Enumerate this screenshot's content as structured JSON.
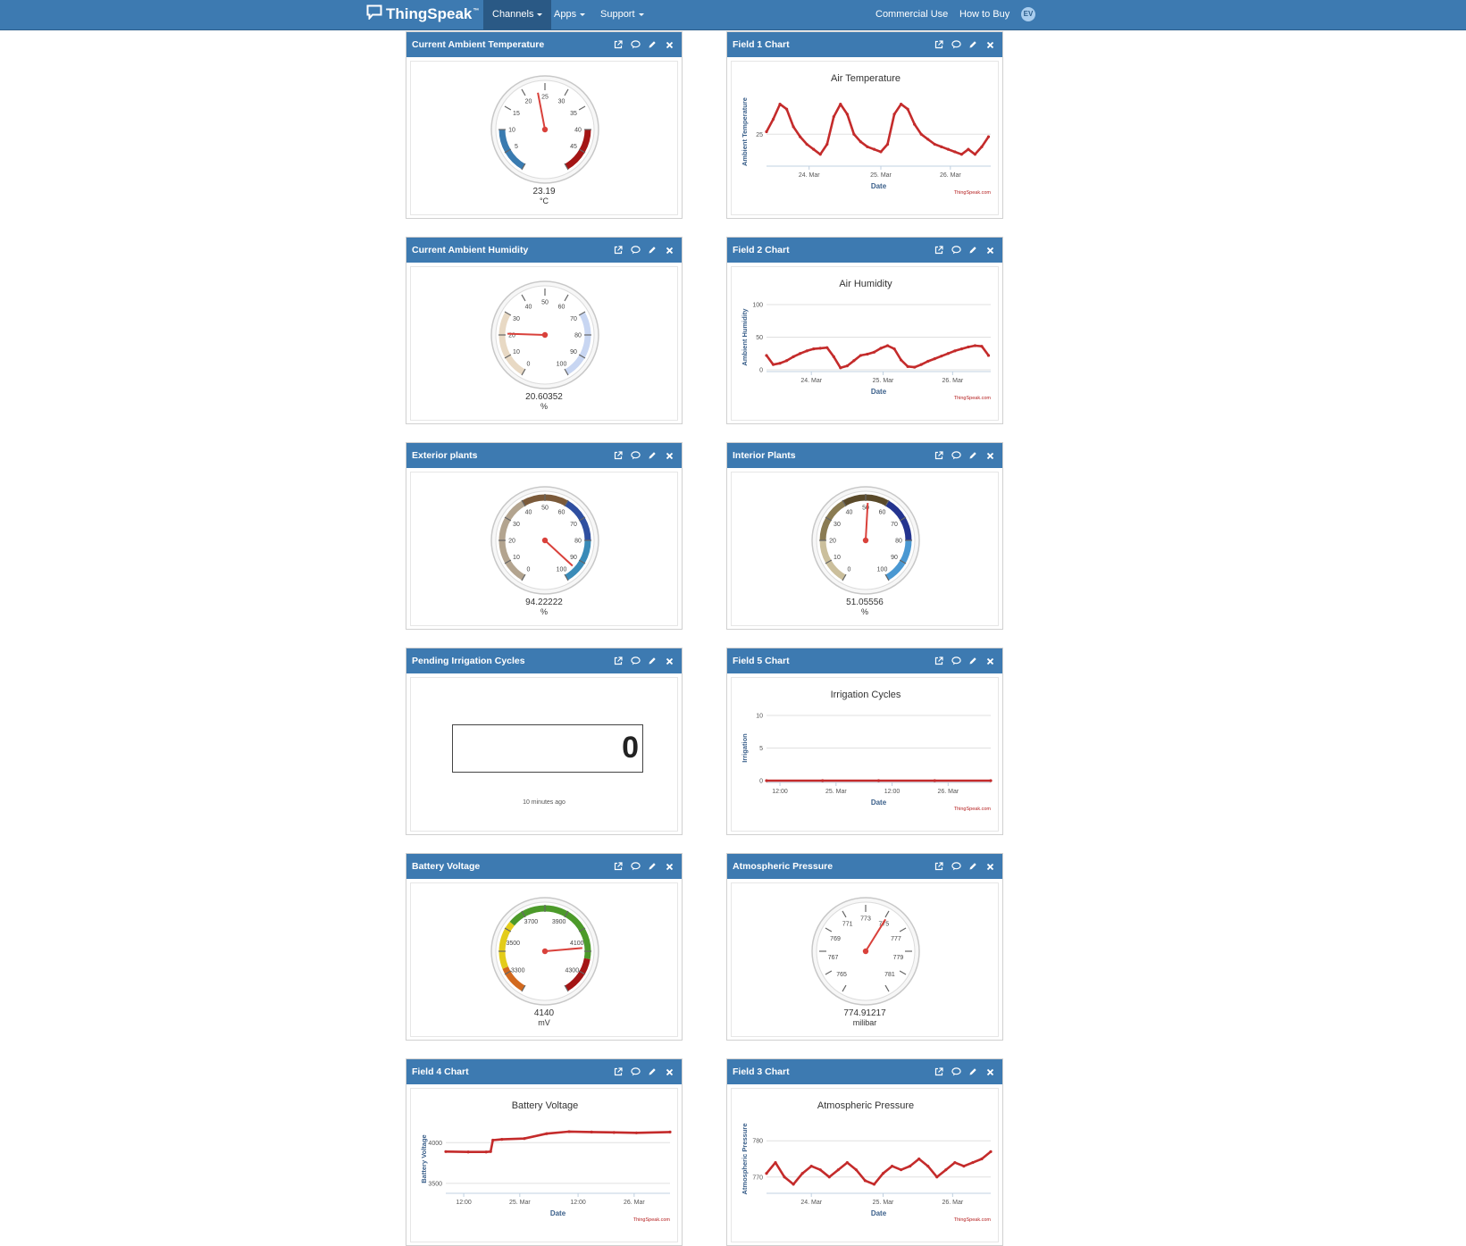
{
  "nav": {
    "brand": "ThingSpeak",
    "trademark": "™",
    "items": [
      {
        "label": "Channels"
      },
      {
        "label": "Apps"
      },
      {
        "label": "Support"
      }
    ],
    "right_items": [
      {
        "label": "Commercial Use"
      },
      {
        "label": "How to Buy"
      }
    ],
    "avatar": "EV"
  },
  "widgets": [
    {
      "id": "w0",
      "title": "Current Ambient Temperature",
      "kind": "gauge",
      "value_text": "23.19",
      "unit": "°C",
      "gauge": {
        "min": 0,
        "max": 50,
        "value": 23.19,
        "labels": [
          "5",
          "10",
          "15",
          "20",
          "25",
          "30",
          "35",
          "40",
          "45"
        ],
        "bands": [
          {
            "from": 0,
            "to": 10,
            "color": "#3a7bb0"
          },
          {
            "from": 40,
            "to": 50,
            "color": "#a41515"
          }
        ]
      }
    },
    {
      "id": "w1",
      "title": "Field 1 Chart",
      "kind": "chart",
      "chart_index": 0
    },
    {
      "id": "w2",
      "title": "Current Ambient Humidity",
      "kind": "gauge",
      "value_text": "20.60352",
      "unit": "%",
      "gauge": {
        "min": 0,
        "max": 100,
        "value": 20.60352,
        "labels": [
          "0",
          "10",
          "20",
          "30",
          "40",
          "50",
          "60",
          "70",
          "80",
          "90",
          "100"
        ],
        "bands": [
          {
            "from": 0,
            "to": 30,
            "color": "#e8d9c4"
          },
          {
            "from": 70,
            "to": 100,
            "color": "#c8d6f2"
          }
        ]
      }
    },
    {
      "id": "w3",
      "title": "Field 2 Chart",
      "kind": "chart",
      "chart_index": 1
    },
    {
      "id": "w4",
      "title": "Exterior plants",
      "kind": "gauge",
      "value_text": "94.22222",
      "unit": "%",
      "gauge": {
        "min": 0,
        "max": 100,
        "value": 94.22222,
        "labels": [
          "0",
          "10",
          "20",
          "30",
          "40",
          "50",
          "60",
          "70",
          "80",
          "90",
          "100"
        ],
        "bands": [
          {
            "from": 0,
            "to": 40,
            "color": "#b3a48f"
          },
          {
            "from": 40,
            "to": 60,
            "color": "#7b5a3a"
          },
          {
            "from": 60,
            "to": 80,
            "color": "#2f4fa0"
          },
          {
            "from": 80,
            "to": 100,
            "color": "#3a8bb8"
          }
        ]
      }
    },
    {
      "id": "w5",
      "title": "Interior Plants",
      "kind": "gauge",
      "value_text": "51.05556",
      "unit": "%",
      "gauge": {
        "min": 0,
        "max": 100,
        "value": 51.05556,
        "labels": [
          "0",
          "10",
          "20",
          "30",
          "40",
          "50",
          "60",
          "70",
          "80",
          "90",
          "100"
        ],
        "bands": [
          {
            "from": 0,
            "to": 20,
            "color": "#cbbf9c"
          },
          {
            "from": 20,
            "to": 40,
            "color": "#8a7b52"
          },
          {
            "from": 40,
            "to": 60,
            "color": "#5a4a2a"
          },
          {
            "from": 60,
            "to": 80,
            "color": "#24348f"
          },
          {
            "from": 80,
            "to": 100,
            "color": "#4a98d2"
          }
        ]
      }
    },
    {
      "id": "w6",
      "title": "Pending Irrigation Cycles",
      "kind": "lamp",
      "value_text": "0",
      "time_text": "10 minutes ago"
    },
    {
      "id": "w7",
      "title": "Field 5 Chart",
      "kind": "chart",
      "chart_index": 2
    },
    {
      "id": "w8",
      "title": "Battery Voltage",
      "kind": "gauge",
      "value_text": "4140",
      "unit": "mV",
      "gauge": {
        "min": 3200,
        "max": 4400,
        "value": 4140,
        "labels": [
          "3300",
          "3500",
          "3700",
          "3900",
          "4100",
          "4300"
        ],
        "label_values": [
          3300,
          3500,
          3700,
          3900,
          4100,
          4300
        ],
        "bands": [
          {
            "from": 3200,
            "to": 3350,
            "color": "#d2691e"
          },
          {
            "from": 3350,
            "to": 3600,
            "color": "#e3cc1a"
          },
          {
            "from": 3600,
            "to": 4200,
            "color": "#4c9a2a"
          },
          {
            "from": 4200,
            "to": 4400,
            "color": "#a41515"
          }
        ]
      }
    },
    {
      "id": "w9",
      "title": "Atmospheric Pressure",
      "kind": "gauge",
      "value_text": "774.91217",
      "unit": "milibar",
      "gauge": {
        "min": 764,
        "max": 782,
        "value": 774.91217,
        "labels": [
          "765",
          "767",
          "769",
          "771",
          "773",
          "775",
          "777",
          "779",
          "781"
        ],
        "label_values": [
          765,
          767,
          769,
          771,
          773,
          775,
          777,
          779,
          781
        ],
        "bands": []
      }
    },
    {
      "id": "w10",
      "title": "Field 4 Chart",
      "kind": "chart",
      "chart_index": 3
    },
    {
      "id": "w11",
      "title": "Field 3 Chart",
      "kind": "chart",
      "chart_index": 4
    }
  ],
  "chart_data": [
    {
      "type": "line",
      "title": "Air Temperature",
      "ylabel": "Ambient Temperature",
      "xlabel": "Date",
      "xticks": [
        "24. Mar",
        "25. Mar",
        "26. Mar"
      ],
      "yticks": [
        "25"
      ],
      "credit": "ThingSpeak.com",
      "ylim": [
        19,
        32
      ],
      "xlim": [
        0,
        100
      ],
      "ytick_values": [
        25
      ],
      "xtick_positions": [
        19,
        51,
        82
      ],
      "x": [
        0,
        3,
        6,
        9,
        12,
        15,
        18,
        21,
        24,
        27,
        30,
        33,
        36,
        39,
        42,
        45,
        48,
        51,
        54,
        57,
        60,
        63,
        66,
        69,
        72,
        75,
        78,
        81,
        84,
        87,
        90,
        93,
        96,
        99
      ],
      "y": [
        25.5,
        28,
        31,
        30,
        26.5,
        24.5,
        23,
        22,
        21,
        23,
        28.5,
        31,
        29,
        25,
        23.5,
        22.5,
        22,
        21.5,
        23,
        29,
        31,
        30,
        27,
        25,
        24,
        23,
        22.5,
        22,
        21.5,
        21,
        22,
        21,
        22.5,
        24.5
      ]
    },
    {
      "type": "line",
      "title": "Air Humidity",
      "ylabel": "Ambient Humidity",
      "xlabel": "Date",
      "xticks": [
        "24. Mar",
        "25. Mar",
        "26. Mar"
      ],
      "yticks": [
        "100",
        "50",
        "0"
      ],
      "credit": "ThingSpeak.com",
      "ylim": [
        0,
        100
      ],
      "xlim": [
        0,
        100
      ],
      "ytick_values": [
        100,
        50,
        0
      ],
      "xtick_positions": [
        20,
        52,
        83
      ],
      "x": [
        0,
        3,
        6,
        9,
        12,
        15,
        18,
        21,
        24,
        27,
        30,
        33,
        36,
        39,
        42,
        45,
        48,
        51,
        54,
        57,
        60,
        63,
        66,
        69,
        72,
        75,
        78,
        81,
        84,
        87,
        90,
        93,
        96,
        99
      ],
      "y": [
        22,
        8,
        10,
        14,
        20,
        25,
        29,
        32,
        33,
        34,
        20,
        3,
        6,
        14,
        22,
        24,
        27,
        33,
        37,
        32,
        15,
        5,
        4,
        8,
        13,
        17,
        21,
        25,
        29,
        32,
        35,
        37,
        36,
        22
      ]
    },
    {
      "type": "line",
      "title": "Irrigation Cycles",
      "ylabel": "Irrigation",
      "xlabel": "Date",
      "xticks": [
        "12:00",
        "25. Mar",
        "12:00",
        "26. Mar"
      ],
      "yticks": [
        "10",
        "5",
        "0"
      ],
      "credit": "ThingSpeak.com",
      "ylim": [
        0,
        10
      ],
      "xlim": [
        0,
        100
      ],
      "ytick_values": [
        10,
        5,
        0
      ],
      "xtick_positions": [
        6,
        31,
        56,
        81
      ],
      "x": [
        0,
        25,
        50,
        75,
        100
      ],
      "y": [
        0,
        0,
        0,
        0,
        0
      ]
    },
    {
      "type": "line",
      "title": "Battery Voltage",
      "ylabel": "Battery Voltage",
      "xlabel": "Date",
      "xticks": [
        "12:00",
        "25. Mar",
        "12:00",
        "26. Mar"
      ],
      "yticks": [
        "4000",
        "3500"
      ],
      "credit": "ThingSpeak.com",
      "ylim": [
        3400,
        4200
      ],
      "xlim": [
        0,
        100
      ],
      "ytick_values": [
        4000,
        3500
      ],
      "xtick_positions": [
        8,
        33,
        59,
        84
      ],
      "x": [
        0,
        10,
        18,
        20,
        21,
        25,
        35,
        45,
        55,
        65,
        75,
        85,
        100
      ],
      "y": [
        3890,
        3885,
        3885,
        3890,
        4030,
        4040,
        4050,
        4110,
        4135,
        4130,
        4125,
        4120,
        4130
      ]
    },
    {
      "type": "line",
      "title": "Atmospheric Pressure",
      "ylabel": "Atmospheric Pressure",
      "xlabel": "Date",
      "xticks": [
        "24. Mar",
        "25. Mar",
        "26. Mar"
      ],
      "yticks": [
        "780",
        "770"
      ],
      "credit": "ThingSpeak.com",
      "ylim": [
        766,
        784
      ],
      "xlim": [
        0,
        100
      ],
      "ytick_values": [
        780,
        770
      ],
      "xtick_positions": [
        20,
        52,
        83
      ],
      "x": [
        0,
        4,
        8,
        12,
        16,
        20,
        24,
        28,
        32,
        36,
        40,
        44,
        48,
        52,
        56,
        60,
        64,
        68,
        72,
        76,
        80,
        84,
        88,
        92,
        96,
        100
      ],
      "y": [
        771,
        774,
        770,
        768,
        771,
        773,
        772,
        770,
        772,
        774,
        772,
        769,
        768,
        771,
        773,
        772,
        773,
        775,
        773,
        770,
        772,
        774,
        773,
        774,
        775,
        777
      ]
    }
  ],
  "colors": {
    "nav": "#3d7ab1",
    "nav_active": "#2a5985",
    "line": "#c42b2b",
    "needle": "#d9413b"
  }
}
